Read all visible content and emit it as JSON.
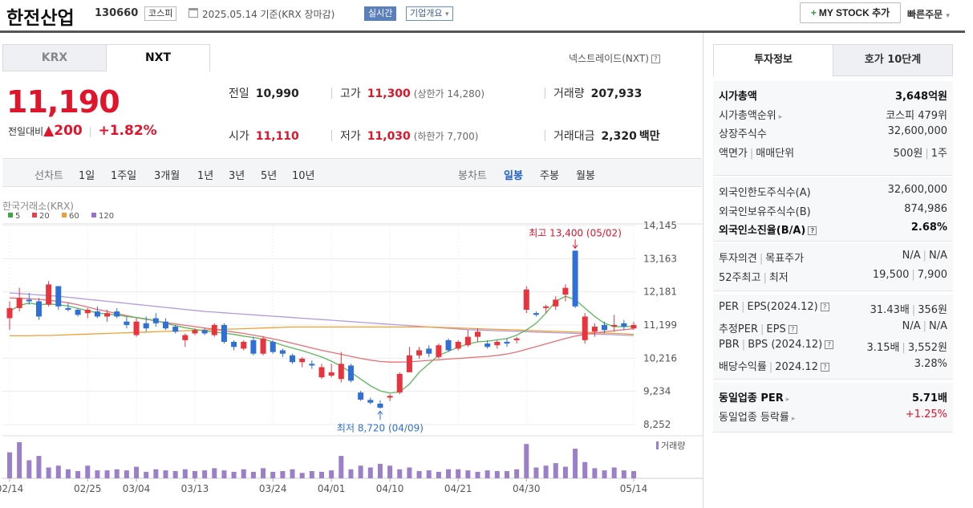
{
  "header": {
    "title": "한전산업",
    "code": "130660",
    "market_tag": "코스피",
    "date": "2025.05.14 기준(KRX 장마감)",
    "realtime_tag": "실시간",
    "overview_tag": "기업개요",
    "overview_arrow": "▾",
    "mystock_plus": "+",
    "mystock": "MY STOCK 추가",
    "quick_order": "빠른주문",
    "quick_order_arrow": "▾"
  },
  "tabs": {
    "krx": "KRX",
    "nxt": "NXT"
  },
  "nxt_link": "넥스트레이드(NXT)",
  "qmark": "?",
  "price": {
    "current": "11,190",
    "change_label": "전일대비",
    "change_arrow": "▲",
    "change": "200",
    "change_pct": "+1.82%"
  },
  "stats": {
    "prev_label": "전일",
    "prev": "10,990",
    "high_label": "고가",
    "high": "11,300",
    "upper_limit": "(상한가 14,280)",
    "volume_label": "거래량",
    "volume": "207,933",
    "open_label": "시가",
    "open": "11,110",
    "low_label": "저가",
    "low": "11,030",
    "lower_limit": "(하한가 7,700)",
    "amount_label": "거래대금",
    "amount": "2,320",
    "amount_unit": "백만"
  },
  "period_bar": {
    "line_label": "선차트",
    "line_periods": [
      "1일",
      "1주일",
      "3개월",
      "1년",
      "3년",
      "5년",
      "10년"
    ],
    "candle_label": "봉차트",
    "candle_periods": [
      "일봉",
      "주봉",
      "월봉"
    ],
    "selected": "일봉"
  },
  "chart": {
    "source": "한국거래소(KRX)",
    "ma_legend": [
      {
        "name": "5",
        "color": "#3aa83a"
      },
      {
        "name": "20",
        "color": "#e8434a"
      },
      {
        "name": "60",
        "color": "#f0a030"
      },
      {
        "name": "120",
        "color": "#9b6fd0"
      }
    ],
    "high_annotation": "최고 13,400 (05/02)",
    "low_annotation": "최저 8,720 (04/09)",
    "volume_label": "거래량"
  },
  "chart_data": {
    "type": "candlestick",
    "y_ticks": [
      14145,
      13163,
      12181,
      11199,
      10216,
      9234,
      8252
    ],
    "ylim": [
      8252,
      14145
    ],
    "x_tick_labels": [
      "02/14",
      "02/25",
      "03/04",
      "03/13",
      "03/24",
      "04/01",
      "04/10",
      "04/21",
      "04/30",
      "05/14"
    ],
    "candles": [
      [
        11400,
        11900,
        11050,
        11700
      ],
      [
        11700,
        12300,
        11600,
        12000
      ],
      [
        11950,
        12150,
        11800,
        11900
      ],
      [
        11900,
        12000,
        11350,
        11450
      ],
      [
        11800,
        12500,
        11750,
        12400
      ],
      [
        12350,
        12350,
        11650,
        11750
      ],
      [
        11700,
        11850,
        11600,
        11650
      ],
      [
        11650,
        11700,
        11450,
        11500
      ],
      [
        11550,
        11700,
        11400,
        11650
      ],
      [
        11600,
        11750,
        11400,
        11450
      ],
      [
        11450,
        11650,
        11300,
        11550
      ],
      [
        11600,
        11700,
        11400,
        11450
      ],
      [
        11300,
        11450,
        11100,
        11200
      ],
      [
        10900,
        11400,
        10850,
        11300
      ],
      [
        11250,
        11450,
        11000,
        11100
      ],
      [
        11400,
        11550,
        11150,
        11250
      ],
      [
        11300,
        11400,
        11050,
        11100
      ],
      [
        11150,
        11200,
        10950,
        11000
      ],
      [
        10750,
        10950,
        10550,
        10900
      ],
      [
        10950,
        11100,
        10900,
        11050
      ],
      [
        11050,
        11100,
        10900,
        10950
      ],
      [
        10900,
        11250,
        10850,
        11200
      ],
      [
        11200,
        11250,
        10650,
        10700
      ],
      [
        10700,
        10750,
        10450,
        10550
      ],
      [
        10500,
        10750,
        10450,
        10700
      ],
      [
        10750,
        10850,
        10300,
        10350
      ],
      [
        10350,
        10850,
        10300,
        10800
      ],
      [
        10700,
        10750,
        10350,
        10400
      ],
      [
        10450,
        10500,
        10250,
        10350
      ],
      [
        10300,
        10350,
        10050,
        10100
      ],
      [
        10100,
        10250,
        9950,
        10200
      ],
      [
        10050,
        10150,
        9900,
        10000
      ],
      [
        9650,
        10050,
        9600,
        9950
      ],
      [
        9700,
        10050,
        9650,
        9800
      ],
      [
        9600,
        10400,
        9500,
        10050
      ],
      [
        10000,
        10050,
        9500,
        9550
      ],
      [
        9200,
        9250,
        8950,
        8990
      ],
      [
        8980,
        9050,
        8850,
        8900
      ],
      [
        8870,
        8970,
        8720,
        8750
      ],
      [
        9050,
        9150,
        8950,
        9100
      ],
      [
        9200,
        9800,
        9150,
        9750
      ],
      [
        9800,
        10550,
        9800,
        10300
      ],
      [
        10300,
        10550,
        10200,
        10450
      ],
      [
        10500,
        10600,
        10250,
        10350
      ],
      [
        10250,
        10650,
        10200,
        10600
      ],
      [
        10750,
        10800,
        10400,
        10450
      ],
      [
        10500,
        10750,
        10450,
        10700
      ],
      [
        10600,
        11050,
        10550,
        10850
      ],
      [
        10850,
        11100,
        10700,
        11000
      ],
      [
        10650,
        10750,
        10500,
        10550
      ],
      [
        10600,
        10750,
        10500,
        10700
      ],
      [
        10700,
        10800,
        10550,
        10650
      ],
      [
        10750,
        10850,
        10650,
        10800
      ],
      [
        11650,
        12350,
        11550,
        12250
      ],
      [
        11550,
        11600,
        11450,
        11500
      ],
      [
        11700,
        11800,
        11550,
        11750
      ],
      [
        11750,
        12050,
        11650,
        11950
      ],
      [
        12100,
        12400,
        11900,
        12300
      ],
      [
        13400,
        13400,
        11700,
        11750
      ],
      [
        10750,
        11550,
        10650,
        11450
      ],
      [
        11000,
        11250,
        10850,
        11150
      ],
      [
        11200,
        11300,
        10950,
        11050
      ],
      [
        11150,
        11500,
        11000,
        11200
      ],
      [
        11250,
        11350,
        11050,
        11150
      ],
      [
        11100,
        11300,
        11050,
        11200
      ]
    ],
    "volume": [
      0.72,
      1.0,
      0.5,
      0.62,
      0.3,
      0.35,
      0.25,
      0.2,
      0.35,
      0.22,
      0.22,
      0.25,
      0.22,
      0.32,
      0.18,
      0.25,
      0.22,
      0.2,
      0.25,
      0.2,
      0.22,
      0.28,
      0.22,
      0.18,
      0.25,
      0.18,
      0.28,
      0.18,
      0.2,
      0.25,
      0.15,
      0.2,
      0.18,
      0.22,
      0.62,
      0.25,
      0.35,
      0.3,
      0.4,
      0.35,
      0.25,
      0.3,
      0.2,
      0.22,
      0.18,
      0.25,
      0.25,
      0.22,
      0.18,
      0.22,
      0.2,
      0.2,
      0.25,
      0.95,
      0.3,
      0.35,
      0.42,
      0.32,
      0.82,
      0.45,
      0.28,
      0.22,
      0.3,
      0.22,
      0.2
    ],
    "ma5": [
      11600,
      11780,
      11850,
      11800,
      11820,
      11800,
      11760,
      11690,
      11620,
      11560,
      11520,
      11500,
      11450,
      11420,
      11380,
      11330,
      11250,
      11180,
      11120,
      11070,
      11020,
      10990,
      10960,
      10920,
      10870,
      10830,
      10780,
      10700,
      10600,
      10520,
      10440,
      10350,
      10250,
      10130,
      9980,
      9800,
      9600,
      9400,
      9250,
      9180,
      9220,
      9450,
      9800,
      10050,
      10300,
      10420,
      10540,
      10640,
      10700,
      10720,
      10760,
      10800,
      10900,
      11050,
      11250,
      11550,
      11900,
      12050,
      11950,
      11700,
      11450,
      11250,
      11150,
      11150,
      11160
    ],
    "ma20": [
      12000,
      11990,
      11980,
      11960,
      11930,
      11900,
      11860,
      11800,
      11730,
      11660,
      11600,
      11540,
      11480,
      11420,
      11370,
      11320,
      11270,
      11230,
      11190,
      11150,
      11110,
      11070,
      11030,
      10990,
      10950,
      10900,
      10850,
      10790,
      10730,
      10660,
      10590,
      10520,
      10450,
      10390,
      10330,
      10270,
      10210,
      10160,
      10120,
      10100,
      10100,
      10110,
      10130,
      10150,
      10170,
      10190,
      10210,
      10230,
      10250,
      10270,
      10300,
      10340,
      10400,
      10480,
      10560,
      10640,
      10720,
      10800,
      10870,
      10920,
      10960,
      11000,
      11030,
      11060,
      11090
    ],
    "ma60": [
      10880,
      10880,
      10880,
      10890,
      10890,
      10900,
      10910,
      10920,
      10930,
      10940,
      10950,
      10960,
      10970,
      10980,
      10990,
      11000,
      11010,
      11020,
      11030,
      11040,
      11050,
      11060,
      11070,
      11080,
      11090,
      11100,
      11110,
      11120,
      11130,
      11140,
      11140,
      11140,
      11140,
      11140,
      11140,
      11140,
      11140,
      11140,
      11140,
      11140,
      11140,
      11140,
      11140,
      11140,
      11130,
      11120,
      11110,
      11100,
      11090,
      11080,
      11070,
      11060,
      11050,
      11040,
      11030,
      11020,
      11010,
      11000,
      10990,
      10980,
      10970,
      10960,
      10950,
      10940,
      10920
    ],
    "ma120": [
      12150,
      12130,
      12110,
      12090,
      12070,
      12050,
      12020,
      11990,
      11960,
      11930,
      11900,
      11870,
      11840,
      11810,
      11780,
      11750,
      11720,
      11690,
      11660,
      11630,
      11600,
      11580,
      11560,
      11540,
      11520,
      11500,
      11480,
      11460,
      11440,
      11420,
      11400,
      11380,
      11360,
      11340,
      11320,
      11300,
      11280,
      11260,
      11240,
      11220,
      11200,
      11180,
      11160,
      11140,
      11120,
      11100,
      11080,
      11060,
      11050,
      11040,
      11030,
      11020,
      11010,
      11000,
      10990,
      10980,
      10970,
      10960,
      10950,
      10940,
      10930,
      10920,
      10910,
      10900,
      10890
    ]
  },
  "invest": {
    "tab_info": "투자정보",
    "tab_orderbook": "호가 10단계",
    "rows1": [
      {
        "k": "시가총액",
        "v": "3,648억원",
        "bold": true
      },
      {
        "k": "시가총액순위",
        "v": "코스피 479위",
        "arrow": true
      },
      {
        "k": "상장주식수",
        "v": "32,600,000"
      },
      {
        "k": "액면가",
        "k2": "매매단위",
        "v": "500원",
        "v2": "1주"
      }
    ],
    "rows2": [
      {
        "k": "외국인한도주식수(A)",
        "v": "32,600,000"
      },
      {
        "k": "외국인보유주식수(B)",
        "v": "874,986"
      },
      {
        "k": "외국인소진율(B/A)",
        "v": "2.68%",
        "bold": true,
        "q": true
      }
    ],
    "rows3": [
      {
        "k": "투자의견",
        "k2": "목표주가",
        "v": "N/A",
        "v2": "N/A"
      },
      {
        "k": "52주최고",
        "k2": "최저",
        "v": "19,500",
        "v2": "7,900"
      }
    ],
    "rows4": [
      {
        "k": "PER",
        "k2": "EPS(2024.12)",
        "v": "31.43배",
        "v2": "356원",
        "q": true
      },
      {
        "k": "추정PER",
        "k2": "EPS",
        "v": "N/A",
        "v2": "N/A",
        "q": true
      },
      {
        "k": "PBR",
        "k2": "BPS (2024.12)",
        "v": "3.15배",
        "v2": "3,552원",
        "q": true
      },
      {
        "k": "배당수익률",
        "k2": "2024.12",
        "v": "3.28%",
        "q": true
      }
    ],
    "rows5": [
      {
        "k": "동일업종 PER",
        "v": "5.71배",
        "bold": true,
        "arrow": true
      },
      {
        "k": "동일업종 등락률",
        "v": "+1.25%",
        "red": true,
        "arrow": true
      }
    ]
  }
}
